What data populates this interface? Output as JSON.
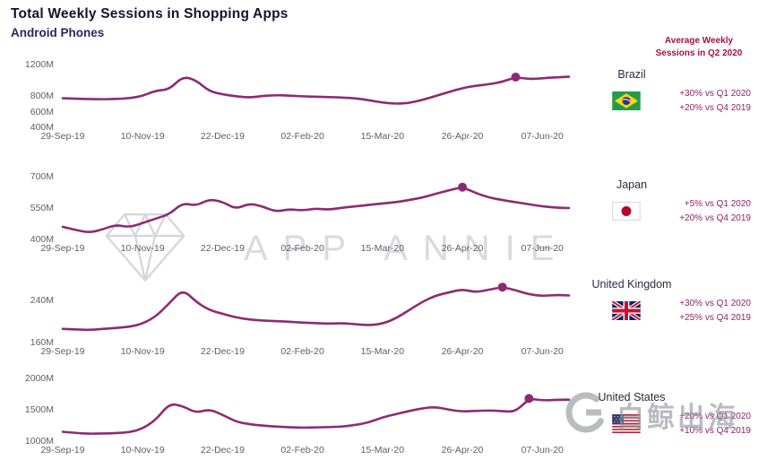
{
  "header": {
    "title": "Total Weekly Sessions in Shopping Apps",
    "subtitle": "Android Phones",
    "right_panel_title_line1": "Average Weekly",
    "right_panel_title_line2": "Sessions in Q2 2020"
  },
  "watermarks": {
    "center_text": "APP ANNIE",
    "center_icon": "gem-logo-icon",
    "corner_text": "白鲸出海",
    "corner_icon": "baijing-g-logo-icon"
  },
  "colors": {
    "line": "#8e2a74",
    "stats_text": "#8d2268",
    "right_header_text": "#a3123d",
    "axis_text": "#5d5d68",
    "title_text": "#16122e"
  },
  "x_axis": {
    "tick_labels": [
      "29-Sep-19",
      "10-Nov-19",
      "22-Dec-19",
      "02-Feb-20",
      "15-Mar-20",
      "26-Apr-20",
      "07-Jun-20"
    ],
    "tick_indices": [
      0,
      6,
      12,
      18,
      24,
      30,
      36
    ]
  },
  "chart_data": [
    {
      "type": "line",
      "country": "Brazil",
      "flag_icon": "brazil-flag-icon",
      "stats": [
        "+30% vs Q1 2020",
        "+20% vs Q4 2019"
      ],
      "unit": "M",
      "ylim": [
        400,
        1200
      ],
      "yticks": [
        {
          "value": 1200,
          "label": "1200M"
        },
        {
          "value": 800,
          "label": "800M"
        },
        {
          "value": 600,
          "label": "600M"
        },
        {
          "value": 400,
          "label": "400M"
        }
      ],
      "values": [
        770,
        765,
        760,
        758,
        762,
        770,
        800,
        870,
        880,
        1050,
        1000,
        860,
        820,
        795,
        780,
        800,
        810,
        805,
        795,
        790,
        785,
        780,
        770,
        745,
        715,
        700,
        710,
        750,
        800,
        850,
        900,
        930,
        950,
        980,
        1040,
        1015,
        1025,
        1038,
        1045
      ],
      "marker_index": 34
    },
    {
      "type": "line",
      "country": "Japan",
      "flag_icon": "japan-flag-icon",
      "stats": [
        "+5% vs Q1 2020",
        "+20% vs Q4 2019"
      ],
      "unit": "M",
      "ylim": [
        400,
        700
      ],
      "yticks": [
        {
          "value": 700,
          "label": "700M"
        },
        {
          "value": 550,
          "label": "550M"
        },
        {
          "value": 400,
          "label": "400M"
        }
      ],
      "values": [
        460,
        445,
        432,
        448,
        470,
        458,
        478,
        500,
        520,
        575,
        560,
        592,
        580,
        545,
        572,
        558,
        532,
        545,
        538,
        548,
        542,
        552,
        558,
        565,
        572,
        578,
        588,
        600,
        618,
        635,
        650,
        622,
        600,
        588,
        578,
        568,
        558,
        552,
        550
      ],
      "marker_index": 30
    },
    {
      "type": "line",
      "country": "United Kingdom",
      "flag_icon": "uk-flag-icon",
      "stats": [
        "+30% vs Q1 2020",
        "+25% vs Q4 2019"
      ],
      "unit": "M",
      "ylim": [
        160,
        280
      ],
      "yticks": [
        {
          "value": 240,
          "label": "240M"
        },
        {
          "value": 160,
          "label": "160M"
        }
      ],
      "values": [
        186,
        185,
        184,
        186,
        188,
        190,
        196,
        210,
        235,
        262,
        238,
        222,
        215,
        208,
        204,
        202,
        201,
        200,
        198,
        197,
        196,
        197,
        195,
        193,
        196,
        206,
        222,
        238,
        250,
        256,
        262,
        256,
        261,
        266,
        260,
        252,
        249,
        251,
        250
      ],
      "marker_index": 33
    },
    {
      "type": "line",
      "country": "United States",
      "flag_icon": "us-flag-icon",
      "stats": [
        "+20% vs Q1 2020",
        "+10% vs Q4 2019"
      ],
      "unit": "M",
      "ylim": [
        1000,
        2000
      ],
      "yticks": [
        {
          "value": 2000,
          "label": "2000M"
        },
        {
          "value": 1500,
          "label": "1500M"
        },
        {
          "value": 1000,
          "label": "1000M"
        }
      ],
      "values": [
        1150,
        1130,
        1118,
        1122,
        1128,
        1140,
        1200,
        1340,
        1600,
        1560,
        1450,
        1510,
        1420,
        1310,
        1270,
        1248,
        1232,
        1222,
        1215,
        1218,
        1224,
        1232,
        1258,
        1300,
        1380,
        1430,
        1480,
        1525,
        1545,
        1500,
        1472,
        1482,
        1490,
        1478,
        1468,
        1680,
        1648,
        1658,
        1662
      ],
      "marker_index": 35
    }
  ]
}
